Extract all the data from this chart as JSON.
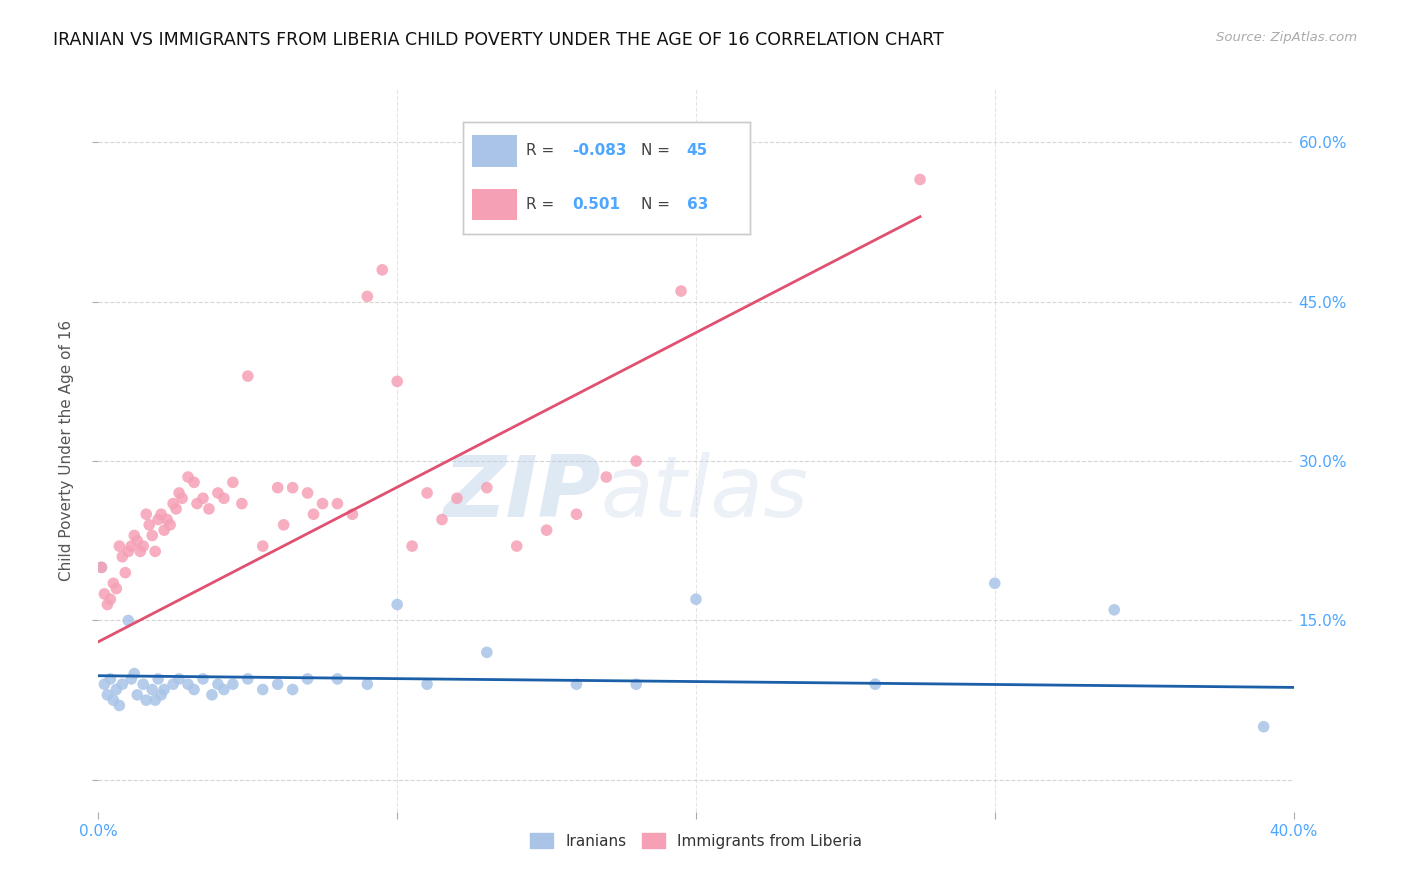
{
  "title": "IRANIAN VS IMMIGRANTS FROM LIBERIA CHILD POVERTY UNDER THE AGE OF 16 CORRELATION CHART",
  "source": "Source: ZipAtlas.com",
  "ylabel": "Child Poverty Under the Age of 16",
  "xlim": [
    0.0,
    0.4
  ],
  "ylim": [
    -0.03,
    0.65
  ],
  "grid_color": "#cccccc",
  "background_color": "#ffffff",
  "watermark_zip": "ZIP",
  "watermark_atlas": "atlas",
  "legend_r1": "-0.083",
  "legend_n1": "45",
  "legend_r2": "0.501",
  "legend_n2": "63",
  "iranians_color": "#aac4e8",
  "liberia_color": "#f5a0b5",
  "iranians_line_color": "#1a5fa8",
  "liberia_line_color": "#e05070",
  "tick_label_color": "#4da6ff",
  "scatter_size": 70,
  "iranians_x": [
    0.001,
    0.002,
    0.003,
    0.004,
    0.005,
    0.006,
    0.007,
    0.008,
    0.01,
    0.011,
    0.012,
    0.013,
    0.015,
    0.016,
    0.018,
    0.019,
    0.02,
    0.021,
    0.022,
    0.025,
    0.027,
    0.03,
    0.032,
    0.035,
    0.038,
    0.04,
    0.042,
    0.045,
    0.05,
    0.055,
    0.06,
    0.065,
    0.07,
    0.08,
    0.09,
    0.1,
    0.11,
    0.13,
    0.16,
    0.18,
    0.2,
    0.26,
    0.3,
    0.34,
    0.39
  ],
  "iranians_y": [
    0.2,
    0.09,
    0.08,
    0.095,
    0.075,
    0.085,
    0.07,
    0.09,
    0.15,
    0.095,
    0.1,
    0.08,
    0.09,
    0.075,
    0.085,
    0.075,
    0.095,
    0.08,
    0.085,
    0.09,
    0.095,
    0.09,
    0.085,
    0.095,
    0.08,
    0.09,
    0.085,
    0.09,
    0.095,
    0.085,
    0.09,
    0.085,
    0.095,
    0.095,
    0.09,
    0.165,
    0.09,
    0.12,
    0.09,
    0.09,
    0.17,
    0.09,
    0.185,
    0.16,
    0.05
  ],
  "liberia_x": [
    0.001,
    0.002,
    0.003,
    0.004,
    0.005,
    0.006,
    0.007,
    0.008,
    0.009,
    0.01,
    0.011,
    0.012,
    0.013,
    0.014,
    0.015,
    0.016,
    0.017,
    0.018,
    0.019,
    0.02,
    0.021,
    0.022,
    0.023,
    0.024,
    0.025,
    0.026,
    0.027,
    0.028,
    0.03,
    0.032,
    0.033,
    0.035,
    0.037,
    0.04,
    0.042,
    0.045,
    0.048,
    0.05,
    0.055,
    0.06,
    0.062,
    0.065,
    0.07,
    0.072,
    0.075,
    0.08,
    0.085,
    0.09,
    0.095,
    0.1,
    0.105,
    0.11,
    0.115,
    0.12,
    0.13,
    0.14,
    0.15,
    0.16,
    0.17,
    0.18,
    0.195,
    0.21,
    0.275
  ],
  "liberia_y": [
    0.2,
    0.175,
    0.165,
    0.17,
    0.185,
    0.18,
    0.22,
    0.21,
    0.195,
    0.215,
    0.22,
    0.23,
    0.225,
    0.215,
    0.22,
    0.25,
    0.24,
    0.23,
    0.215,
    0.245,
    0.25,
    0.235,
    0.245,
    0.24,
    0.26,
    0.255,
    0.27,
    0.265,
    0.285,
    0.28,
    0.26,
    0.265,
    0.255,
    0.27,
    0.265,
    0.28,
    0.26,
    0.38,
    0.22,
    0.275,
    0.24,
    0.275,
    0.27,
    0.25,
    0.26,
    0.26,
    0.25,
    0.455,
    0.48,
    0.375,
    0.22,
    0.27,
    0.245,
    0.265,
    0.275,
    0.22,
    0.235,
    0.25,
    0.285,
    0.3,
    0.46,
    0.525,
    0.565
  ],
  "iran_trend_x0": 0.0,
  "iran_trend_x1": 0.4,
  "iran_trend_y0": 0.098,
  "iran_trend_y1": 0.087,
  "lib_trend_x0": 0.0,
  "lib_trend_x1": 0.275,
  "lib_trend_y0": 0.13,
  "lib_trend_y1": 0.53
}
